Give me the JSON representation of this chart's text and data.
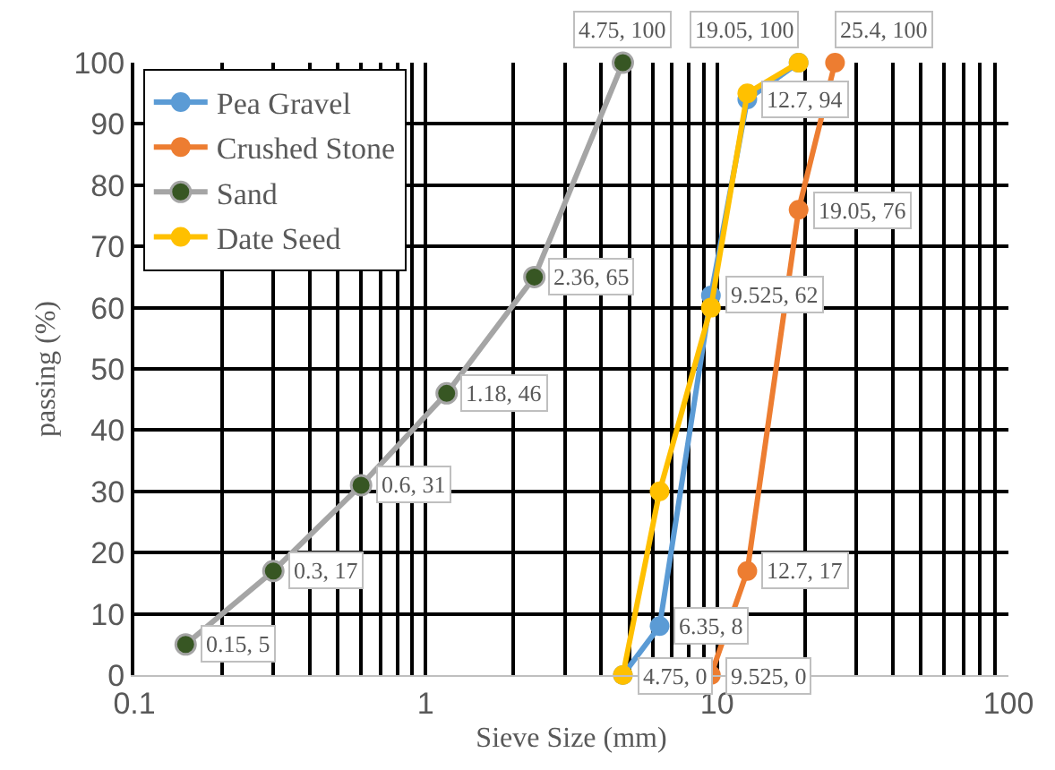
{
  "chart_data": {
    "type": "line",
    "xlabel": "Sieve Size (mm)",
    "ylabel": "passing (%)",
    "log": "x",
    "grid": true,
    "legend": "top left",
    "marker": "circle",
    "xlim": [
      0.1,
      100
    ],
    "ylim": [
      0,
      100
    ],
    "xticks": [
      0.1,
      {
        "value": 0.2,
        "label": null
      },
      {
        "value": 0.3,
        "label": null
      },
      {
        "value": 0.4,
        "label": null
      },
      {
        "value": 0.5,
        "label": null
      },
      {
        "value": 0.6,
        "label": null
      },
      {
        "value": 0.7,
        "label": null
      },
      {
        "value": 0.8,
        "label": null
      },
      {
        "value": 0.9,
        "label": null
      },
      1,
      {
        "value": 2,
        "label": null
      },
      {
        "value": 3,
        "label": null
      },
      {
        "value": 4,
        "label": null
      },
      {
        "value": 5,
        "label": null
      },
      {
        "value": 6,
        "label": null
      },
      {
        "value": 7,
        "label": null
      },
      {
        "value": 8,
        "label": null
      },
      {
        "value": 9,
        "label": null
      },
      10,
      {
        "value": 20,
        "label": null
      },
      {
        "value": 30,
        "label": null
      },
      {
        "value": 40,
        "label": null
      },
      {
        "value": 50,
        "label": null
      },
      {
        "value": 60,
        "label": null
      },
      {
        "value": 70,
        "label": null
      },
      {
        "value": 80,
        "label": null
      },
      {
        "value": 90,
        "label": null
      },
      100
    ],
    "yticks": [
      0,
      10,
      20,
      30,
      40,
      50,
      60,
      70,
      80,
      90,
      100
    ],
    "series": [
      {
        "name": "Pea Gravel",
        "color": "#5b9bd5",
        "x": [
          4.75,
          6.35,
          9.525,
          12.7,
          19.05
        ],
        "values": [
          0,
          8,
          62,
          94,
          100
        ],
        "value_labels": [
          "4.75, 0",
          "6.35, 8",
          "9.525, 62",
          "12.7, 94",
          "19.05, 100"
        ]
      },
      {
        "name": "Crushed Stone",
        "color": "#ed7d31",
        "x": [
          9.525,
          12.7,
          19.05,
          25.4
        ],
        "values": [
          0,
          17,
          76,
          100
        ],
        "value_labels": [
          "9.525, 0",
          "12.7, 17",
          "19.05, 76",
          "25.4, 100"
        ]
      },
      {
        "name": "Sand",
        "color": "#a5a5a5",
        "colors": [
          "#375623",
          "#375623",
          "#375623",
          "#375623",
          "#375623",
          "#375623"
        ],
        "x": [
          0.15,
          0.3,
          0.6,
          1.18,
          2.36,
          4.75
        ],
        "values": [
          5,
          17,
          31,
          46,
          65,
          100
        ],
        "value_labels": [
          "0.15, 5",
          "0.3, 17",
          "0.6, 31",
          "1.18, 46",
          "2.36, 65",
          "4.75, 100"
        ]
      },
      {
        "name": "Date Seed",
        "color": "#ffc000",
        "x": [
          4.75,
          6.35,
          9.525,
          12.7,
          19.05
        ],
        "values": [
          0,
          30,
          60,
          95,
          100
        ]
      }
    ]
  }
}
